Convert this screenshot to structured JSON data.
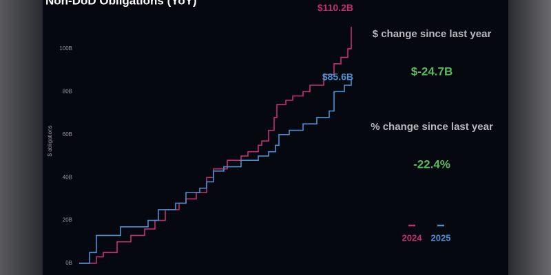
{
  "chart_data": {
    "type": "line",
    "title": "Non-DoD Obligations (YoY)",
    "ylabel": "$ obligations",
    "ylim": [
      -2,
      112
    ],
    "yticks": [
      {
        "value": 0,
        "label": "0B"
      },
      {
        "value": 20,
        "label": "20B"
      },
      {
        "value": 40,
        "label": "40B"
      },
      {
        "value": 60,
        "label": "60B"
      },
      {
        "value": 80,
        "label": "80B"
      },
      {
        "value": 100,
        "label": "100B"
      }
    ],
    "xlim": [
      0,
      395
    ],
    "step": true,
    "series": [
      {
        "name": "2024",
        "color": "#c2306f",
        "end_label": "$110.2B",
        "x": [
          0,
          25,
          35,
          55,
          75,
          95,
          110,
          125,
          145,
          155,
          170,
          185,
          195,
          215,
          235,
          245,
          260,
          265,
          275,
          283,
          287,
          300,
          310,
          325,
          335,
          355,
          370,
          380,
          390,
          395
        ],
        "values": [
          0,
          3,
          5,
          10,
          13,
          16,
          20,
          25,
          28,
          30,
          33,
          40,
          44,
          48,
          50,
          52,
          55,
          57,
          62,
          68,
          74,
          76,
          78,
          80,
          83,
          88,
          93,
          96,
          100,
          110.2
        ]
      },
      {
        "name": "2025",
        "color": "#4a92d4",
        "end_label": "$85.6B",
        "x": [
          0,
          15,
          25,
          60,
          90,
          100,
          115,
          140,
          155,
          175,
          185,
          195,
          210,
          235,
          260,
          275,
          285,
          290,
          305,
          325,
          345,
          363,
          370,
          385,
          395
        ],
        "values": [
          0,
          5,
          13,
          17,
          17,
          20,
          25,
          28,
          33,
          35,
          38,
          43,
          45,
          48,
          50,
          52,
          55,
          60,
          62,
          65,
          68,
          71,
          80,
          83,
          85.6
        ]
      }
    ]
  },
  "stats": [
    {
      "label": "$ change since last year",
      "value": "$-24.7B"
    },
    {
      "label": "% change since last year",
      "value": "-22.4%"
    }
  ]
}
